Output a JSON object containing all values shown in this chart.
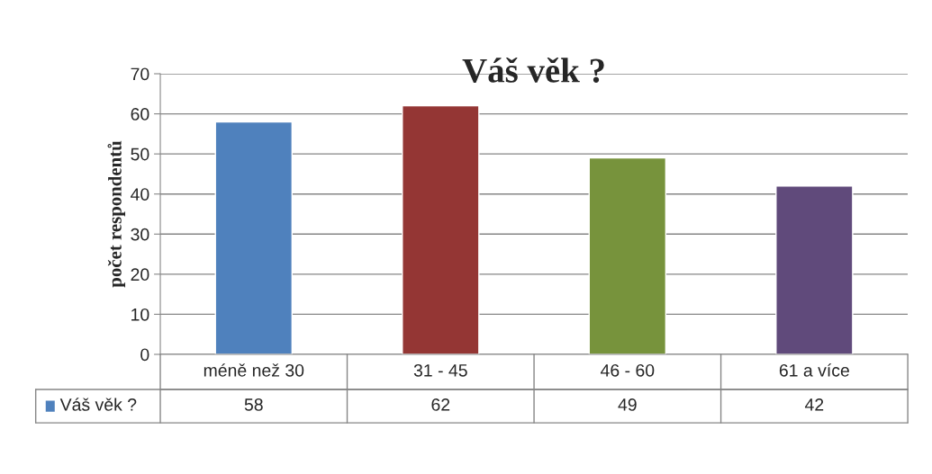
{
  "chart_data": {
    "type": "bar",
    "title": "Váš věk ?",
    "ylabel": "počet respondentů",
    "categories": [
      "méně než 30",
      "31 - 45",
      "46 - 60",
      "61 a více"
    ],
    "series": [
      {
        "name": "Váš věk ?",
        "values": [
          58,
          62,
          49,
          42
        ],
        "colors": [
          "#4f81bd",
          "#943634",
          "#77933c",
          "#604a7b"
        ]
      }
    ],
    "ylim": [
      0,
      70
    ],
    "yticks": [
      0,
      10,
      20,
      30,
      40,
      50,
      60,
      70
    ],
    "grid": "y",
    "data_labels": true,
    "legend": "bottom left"
  }
}
